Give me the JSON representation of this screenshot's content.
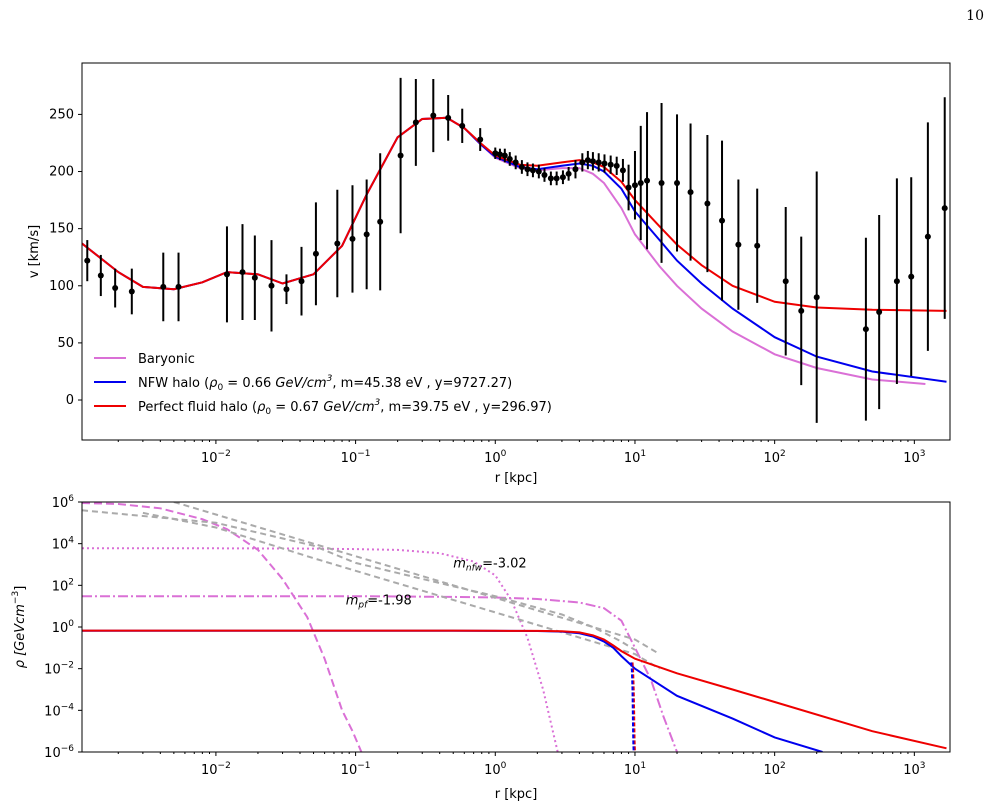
{
  "page": {
    "number": "10"
  },
  "chart_data": [
    {
      "type": "line",
      "xlabel": "r [kpc]",
      "ylabel": "v [km/s]",
      "xscale": "log",
      "xlim": [
        0.0011,
        1800
      ],
      "ylim": [
        -35,
        295
      ],
      "xticks": [
        {
          "value": 0.01,
          "base": "10",
          "exp": "−2"
        },
        {
          "value": 0.1,
          "base": "10",
          "exp": "−1"
        },
        {
          "value": 1,
          "base": "10",
          "exp": "0"
        },
        {
          "value": 10,
          "base": "10",
          "exp": "1"
        },
        {
          "value": 100,
          "base": "10",
          "exp": "2"
        },
        {
          "value": 1000,
          "base": "10",
          "exp": "3"
        }
      ],
      "yticks": [
        {
          "value": 0,
          "label": "0"
        },
        {
          "value": 50,
          "label": "50"
        },
        {
          "value": 100,
          "label": "100"
        },
        {
          "value": 150,
          "label": "150"
        },
        {
          "value": 200,
          "label": "200"
        },
        {
          "value": 250,
          "label": "250"
        }
      ],
      "legend_position": "lower-left",
      "legend": [
        {
          "label": "Baryonic",
          "color": "#da70d6"
        },
        {
          "label": "NFW halo (ρ0 = 0.66 GeV/cm3, m=45.38 eV , y=9727.27)",
          "color": "#0000ee"
        },
        {
          "label": "Perfect fluid halo (ρ0 = 0.67 GeV/cm3, m=39.75 eV , y=296.97)",
          "color": "#ee0000"
        }
      ],
      "series": [
        {
          "name": "Baryonic",
          "color": "#da70d6",
          "x": [
            0.0011,
            0.002,
            0.003,
            0.005,
            0.008,
            0.012,
            0.02,
            0.03,
            0.05,
            0.08,
            0.12,
            0.2,
            0.3,
            0.45,
            0.6,
            0.8,
            1.0,
            1.5,
            2.0,
            3.0,
            4.0,
            5.0,
            6.0,
            8.0,
            10,
            15,
            20,
            30,
            50,
            100,
            200,
            500,
            1200
          ],
          "y": [
            137,
            112,
            99,
            97,
            103,
            112,
            110,
            102,
            110,
            135,
            180,
            230,
            246,
            247,
            238,
            223,
            212,
            203,
            201,
            203,
            203,
            198,
            190,
            168,
            145,
            117,
            100,
            80,
            60,
            40,
            28,
            18,
            14
          ]
        },
        {
          "name": "NFW halo",
          "color": "#0000ee",
          "x": [
            0.0011,
            0.002,
            0.003,
            0.005,
            0.008,
            0.012,
            0.02,
            0.03,
            0.05,
            0.08,
            0.12,
            0.2,
            0.3,
            0.45,
            0.6,
            0.8,
            1.0,
            1.5,
            2.0,
            3.0,
            4.0,
            5.0,
            6.0,
            8.0,
            10,
            15,
            20,
            30,
            50,
            100,
            200,
            500,
            1700
          ],
          "y": [
            137,
            112,
            99,
            97,
            103,
            112,
            110,
            102,
            110,
            135,
            180,
            230,
            246,
            247,
            238,
            223,
            213,
            204,
            202,
            205,
            207,
            205,
            200,
            185,
            165,
            140,
            122,
            102,
            80,
            55,
            38,
            25,
            16
          ]
        },
        {
          "name": "Perfect fluid halo",
          "color": "#ee0000",
          "x": [
            0.0011,
            0.002,
            0.003,
            0.005,
            0.008,
            0.012,
            0.02,
            0.03,
            0.05,
            0.08,
            0.12,
            0.2,
            0.3,
            0.45,
            0.6,
            0.8,
            1.0,
            1.5,
            2.0,
            3.0,
            4.0,
            5.0,
            6.0,
            8.0,
            10,
            15,
            20,
            30,
            50,
            100,
            200,
            500,
            1700
          ],
          "y": [
            137,
            112,
            99,
            97,
            103,
            112,
            110,
            102,
            110,
            135,
            180,
            230,
            246,
            247,
            238,
            224,
            214,
            206,
            205,
            208,
            210,
            208,
            204,
            191,
            175,
            152,
            136,
            118,
            100,
            86,
            81,
            79,
            78
          ]
        }
      ],
      "points": {
        "color": "#000000",
        "x": [
          0.0012,
          0.0015,
          0.0019,
          0.0025,
          0.0042,
          0.0054,
          0.012,
          0.0155,
          0.019,
          0.025,
          0.032,
          0.041,
          0.052,
          0.074,
          0.095,
          0.12,
          0.15,
          0.21,
          0.27,
          0.36,
          0.46,
          0.58,
          0.78,
          1.0,
          1.08,
          1.17,
          1.27,
          1.4,
          1.55,
          1.7,
          1.86,
          2.05,
          2.25,
          2.5,
          2.75,
          3.05,
          3.35,
          3.75,
          4.2,
          4.6,
          5.0,
          5.5,
          6.05,
          6.7,
          7.4,
          8.2,
          9.0,
          10.0,
          11.0,
          12.2,
          15.5,
          20,
          25,
          33,
          42,
          55,
          75,
          120,
          155,
          200,
          450,
          560,
          750,
          950,
          1250,
          1650
        ],
        "y": [
          122,
          109,
          98,
          95,
          99,
          99,
          110,
          112,
          107,
          100,
          97,
          104,
          128,
          137,
          141,
          145,
          156,
          214,
          243,
          249,
          247,
          240,
          228,
          216,
          215,
          214,
          211,
          208,
          204,
          202,
          201,
          200,
          197,
          194,
          194,
          195,
          198,
          202,
          208,
          210,
          209,
          208,
          207,
          206,
          205,
          201,
          186,
          188,
          190,
          192,
          190,
          190,
          182,
          172,
          157,
          136,
          135,
          104,
          78,
          90,
          62,
          77,
          104,
          108,
          143,
          168
        ],
        "err": [
          18,
          18,
          17,
          20,
          30,
          30,
          42,
          42,
          37,
          40,
          13,
          30,
          45,
          47,
          47,
          48,
          60,
          68,
          38,
          32,
          20,
          15,
          10,
          5,
          5,
          6,
          6,
          6,
          6,
          6,
          6,
          6,
          6,
          6,
          6,
          6,
          6,
          8,
          8,
          8,
          8,
          8,
          8,
          8,
          8,
          10,
          20,
          30,
          50,
          60,
          70,
          60,
          60,
          60,
          70,
          57,
          50,
          65,
          65,
          110,
          80,
          85,
          90,
          87,
          100,
          97
        ]
      }
    },
    {
      "type": "line",
      "xlabel": "r [kpc]",
      "ylabel": "ρ [GeVcm−3]",
      "xscale": "log",
      "yscale": "log",
      "xlim": [
        0.0011,
        1800
      ],
      "ylim": [
        1e-06,
        1000000.0
      ],
      "xticks": [
        {
          "value": 0.01,
          "base": "10",
          "exp": "−2"
        },
        {
          "value": 0.1,
          "base": "10",
          "exp": "−1"
        },
        {
          "value": 1,
          "base": "10",
          "exp": "0"
        },
        {
          "value": 10,
          "base": "10",
          "exp": "1"
        },
        {
          "value": 100,
          "base": "10",
          "exp": "2"
        },
        {
          "value": 1000,
          "base": "10",
          "exp": "3"
        }
      ],
      "yticks": [
        {
          "value": 1e-06,
          "base": "10",
          "exp": "−6"
        },
        {
          "value": 0.0001,
          "base": "10",
          "exp": "−4"
        },
        {
          "value": 0.01,
          "base": "10",
          "exp": "−2"
        },
        {
          "value": 1,
          "base": "10",
          "exp": "0"
        },
        {
          "value": 100,
          "base": "10",
          "exp": "2"
        },
        {
          "value": 10000.0,
          "base": "10",
          "exp": "4"
        },
        {
          "value": 1000000.0,
          "base": "10",
          "exp": "6"
        }
      ],
      "annotations": [
        {
          "text_main": "m",
          "text_sub": "nfw",
          "text_rest": "=-3.02",
          "x": 0.5,
          "y": 700
        },
        {
          "text_main": "m",
          "text_sub": "pf",
          "text_rest": "=-1.98",
          "x": 0.085,
          "y": 12
        }
      ],
      "series": [
        {
          "name": "",
          "color": "#da70d6",
          "dash": "8,4",
          "x": [
            0.0011,
            0.002,
            0.004,
            0.008,
            0.012,
            0.02,
            0.03,
            0.045,
            0.06,
            0.08,
            0.095,
            0.11
          ],
          "y": [
            900000.0,
            800000.0,
            500000.0,
            150000.0,
            50000.0,
            5000.0,
            200.0,
            3,
            0.03,
            0.0001,
            1e-05,
            1e-06
          ]
        },
        {
          "name": "",
          "color": "#da70d6",
          "dash": "2,3",
          "x": [
            0.0011,
            0.01,
            0.05,
            0.1,
            0.2,
            0.4,
            0.7,
            1.0,
            1.3,
            1.7,
            2.2,
            2.8
          ],
          "y": [
            6000,
            6000,
            5800,
            5500,
            5000,
            3500,
            1400,
            300,
            20,
            0.3,
            0.001,
            1e-06
          ]
        },
        {
          "name": "",
          "color": "#da70d6",
          "dash": "10,3,2,3",
          "x": [
            0.0011,
            0.01,
            0.1,
            0.5,
            1.0,
            2.0,
            4.0,
            6.0,
            8.0,
            10,
            13,
            16,
            20
          ],
          "y": [
            30,
            30,
            30,
            28,
            26,
            22,
            15,
            8,
            2,
            0.1,
            0.003,
            5e-05,
            1e-06
          ]
        },
        {
          "name": "",
          "color": "#aaaaaa",
          "dash": "6,4",
          "x": [
            0.005,
            0.01,
            0.05,
            0.1,
            0.5,
            1,
            5,
            10,
            15
          ],
          "y": [
            1000000.0,
            250000.0,
            10000.0,
            2500,
            100,
            25,
            1,
            0.25,
            0.05
          ]
        },
        {
          "name": "",
          "color": "#aaaaaa",
          "dash": "6,4",
          "x": [
            0.003,
            0.01,
            0.05,
            0.1,
            0.5,
            1,
            5,
            10,
            15
          ],
          "y": [
            300000.0,
            60000.0,
            2000,
            500,
            20,
            5,
            0.2,
            0.05,
            0.01
          ]
        },
        {
          "name": "",
          "color": "#aaaaaa",
          "dash": "6,4",
          "x": [
            0.0011,
            0.01,
            0.05,
            0.1,
            0.5,
            1,
            3,
            5,
            8,
            10
          ],
          "y": [
            400000.0,
            100000.0,
            8000,
            1200,
            90,
            30,
            4,
            1,
            0.2,
            0.08
          ]
        },
        {
          "name": "",
          "color": "#0000ee",
          "dash": "",
          "x": [
            0.0011,
            0.1,
            0.5,
            1,
            2,
            3,
            4,
            5,
            6,
            7,
            8,
            10,
            20,
            50,
            100,
            220
          ],
          "y": [
            0.66,
            0.66,
            0.66,
            0.65,
            0.64,
            0.6,
            0.5,
            0.35,
            0.2,
            0.1,
            0.04,
            0.01,
            0.0005,
            4e-05,
            5e-06,
            1e-06
          ]
        },
        {
          "name": "",
          "color": "#ee0000",
          "dash": "",
          "x": [
            0.0011,
            0.1,
            0.5,
            1,
            2,
            3,
            4,
            5,
            6,
            7,
            8,
            10,
            20,
            50,
            100,
            500,
            1700
          ],
          "y": [
            0.67,
            0.67,
            0.67,
            0.66,
            0.65,
            0.62,
            0.55,
            0.4,
            0.25,
            0.13,
            0.07,
            0.03,
            0.006,
            0.001,
            0.00025,
            1e-05,
            1.5e-06
          ]
        },
        {
          "name": "",
          "color": "#ee0000",
          "dash": "4,2",
          "x": [
            9.6,
            9.7,
            9.8,
            9.85,
            9.9,
            9.95,
            10.0
          ],
          "y": [
            0.02,
            0.008,
            0.001,
            0.0001,
            1e-05,
            2e-06,
            1e-06
          ]
        },
        {
          "name": "",
          "color": "#0000ee",
          "dash": "4,2",
          "x": [
            9.4,
            9.5,
            9.6,
            9.65,
            9.7,
            9.75,
            9.8
          ],
          "y": [
            0.02,
            0.008,
            0.001,
            0.0001,
            1e-05,
            2e-06,
            1e-06
          ]
        }
      ]
    }
  ]
}
